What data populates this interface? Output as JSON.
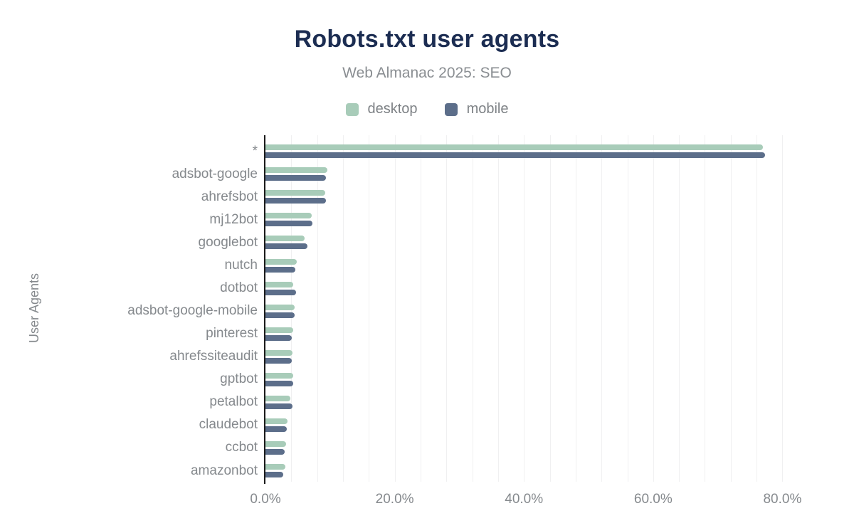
{
  "header": {
    "title": "Robots.txt user agents",
    "subtitle": "Web Almanac 2025: SEO"
  },
  "colors": {
    "background": "#ffffff",
    "title": "#1c2d52",
    "subtitle": "#8a8e92",
    "axis_text": "#85898d",
    "axis_line": "#1b1b1b",
    "gridline": "#f0f0f1",
    "desktop": "#a8ccb9",
    "mobile": "#5c6e8a"
  },
  "chart_data": {
    "type": "bar",
    "orientation": "horizontal",
    "title": "Robots.txt user agents",
    "subtitle": "Web Almanac 2025: SEO",
    "xlabel": "",
    "ylabel": "User Agents",
    "legend_position": "top",
    "grid": "vertical",
    "grid_step_percent": 4,
    "xlim": [
      0,
      87
    ],
    "x_ticks": [
      {
        "value": 0,
        "label": "0.0%"
      },
      {
        "value": 20,
        "label": "20.0%"
      },
      {
        "value": 40,
        "label": "40.0%"
      },
      {
        "value": 60,
        "label": "60.0%"
      },
      {
        "value": 80,
        "label": "80.0%"
      }
    ],
    "categories": [
      "*",
      "adsbot-google",
      "ahrefsbot",
      "mj12bot",
      "googlebot",
      "nutch",
      "dotbot",
      "adsbot-google-mobile",
      "pinterest",
      "ahrefssiteaudit",
      "gptbot",
      "petalbot",
      "claudebot",
      "ccbot",
      "amazonbot"
    ],
    "series": [
      {
        "name": "desktop",
        "color": "#a8ccb9",
        "values": [
          77.0,
          9.6,
          9.2,
          7.2,
          6.1,
          4.8,
          4.3,
          4.5,
          4.3,
          4.2,
          4.3,
          3.9,
          3.4,
          3.2,
          3.1
        ]
      },
      {
        "name": "mobile",
        "color": "#5c6e8a",
        "values": [
          77.3,
          9.4,
          9.4,
          7.3,
          6.5,
          4.6,
          4.7,
          4.5,
          4.1,
          4.1,
          4.3,
          4.2,
          3.3,
          3.0,
          2.8
        ]
      }
    ]
  }
}
